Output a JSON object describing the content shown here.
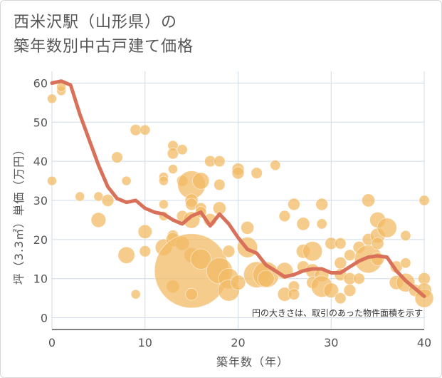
{
  "title_lines": [
    "西米沢駅（山形県）の",
    "築年数別中古戸建て価格"
  ],
  "colors": {
    "bubble": "#f2bb66",
    "line": "#d9705a",
    "grid": "#cfdbe6",
    "axis": "#555555"
  },
  "chart_data": {
    "type": "scatter",
    "title": "西米沢駅（山形県）の 築年数別中古戸建て価格",
    "xlabel": "築年数（年）",
    "ylabel": "坪（3.3㎡）単価（万円）",
    "xlim": [
      0,
      40
    ],
    "ylim": [
      -3,
      63
    ],
    "xticks": [
      0,
      10,
      20,
      30,
      40
    ],
    "yticks": [
      0,
      10,
      20,
      30,
      40,
      50,
      60
    ],
    "grid": true,
    "annotation": "円の大きさは、取引のあった物件面積を示す",
    "bubbles": [
      {
        "x": 0,
        "y": 56,
        "s": 1
      },
      {
        "x": 0,
        "y": 35,
        "s": 1
      },
      {
        "x": 1,
        "y": 58,
        "s": 1
      },
      {
        "x": 1,
        "y": 59,
        "s": 1
      },
      {
        "x": 3,
        "y": 31,
        "s": 1
      },
      {
        "x": 5,
        "y": 31,
        "s": 1
      },
      {
        "x": 5,
        "y": 25,
        "s": 1.6
      },
      {
        "x": 6,
        "y": 30,
        "s": 1.3
      },
      {
        "x": 7,
        "y": 41,
        "s": 1.2
      },
      {
        "x": 8,
        "y": 35,
        "s": 1
      },
      {
        "x": 8,
        "y": 16,
        "s": 1.8
      },
      {
        "x": 9,
        "y": 48,
        "s": 1.2
      },
      {
        "x": 9,
        "y": 6,
        "s": 1
      },
      {
        "x": 10,
        "y": 48,
        "s": 1.1
      },
      {
        "x": 10,
        "y": 22,
        "s": 1.5
      },
      {
        "x": 10,
        "y": 17,
        "s": 1.2
      },
      {
        "x": 12,
        "y": 36,
        "s": 1
      },
      {
        "x": 12,
        "y": 35,
        "s": 1
      },
      {
        "x": 12,
        "y": 29,
        "s": 1
      },
      {
        "x": 12,
        "y": 26,
        "s": 1
      },
      {
        "x": 12,
        "y": 18,
        "s": 1.8
      },
      {
        "x": 13,
        "y": 44,
        "s": 1.1
      },
      {
        "x": 13,
        "y": 42,
        "s": 1.2
      },
      {
        "x": 13,
        "y": 38,
        "s": 1
      },
      {
        "x": 13,
        "y": 21,
        "s": 1.2
      },
      {
        "x": 13,
        "y": 20,
        "s": 1.5
      },
      {
        "x": 13,
        "y": 8,
        "s": 1.4
      },
      {
        "x": 14,
        "y": 43,
        "s": 1.1
      },
      {
        "x": 14,
        "y": 35,
        "s": 1.2
      },
      {
        "x": 14,
        "y": 26,
        "s": 1.2
      },
      {
        "x": 14,
        "y": 19,
        "s": 1.5
      },
      {
        "x": 15,
        "y": 34,
        "s": 3
      },
      {
        "x": 15,
        "y": 30,
        "s": 1.4
      },
      {
        "x": 15,
        "y": 29,
        "s": 1.3
      },
      {
        "x": 15,
        "y": 25,
        "s": 1.8
      },
      {
        "x": 15,
        "y": 16,
        "s": 1.6
      },
      {
        "x": 15,
        "y": 12,
        "s": 8
      },
      {
        "x": 15,
        "y": 6,
        "s": 1.3
      },
      {
        "x": 16,
        "y": 35,
        "s": 1.8
      },
      {
        "x": 16,
        "y": 28,
        "s": 1.2
      },
      {
        "x": 16,
        "y": 27,
        "s": 1.2
      },
      {
        "x": 16,
        "y": 15,
        "s": 2.2
      },
      {
        "x": 17,
        "y": 40,
        "s": 1.2
      },
      {
        "x": 17,
        "y": 25,
        "s": 1.4
      },
      {
        "x": 18,
        "y": 40,
        "s": 1.2
      },
      {
        "x": 18,
        "y": 34,
        "s": 1.2
      },
      {
        "x": 18,
        "y": 28,
        "s": 1.4
      },
      {
        "x": 18,
        "y": 12,
        "s": 2.8
      },
      {
        "x": 19,
        "y": 17,
        "s": 1.3
      },
      {
        "x": 19,
        "y": 10,
        "s": 2.2
      },
      {
        "x": 19,
        "y": 7,
        "s": 2.3
      },
      {
        "x": 20,
        "y": 38,
        "s": 1.3
      },
      {
        "x": 20,
        "y": 37,
        "s": 1.3
      },
      {
        "x": 20,
        "y": 9,
        "s": 1.6
      },
      {
        "x": 21,
        "y": 23,
        "s": 1.4
      },
      {
        "x": 21,
        "y": 18,
        "s": 2.2
      },
      {
        "x": 22,
        "y": 37,
        "s": 1.2
      },
      {
        "x": 22,
        "y": 11,
        "s": 2.8
      },
      {
        "x": 23,
        "y": 11,
        "s": 2.8
      },
      {
        "x": 23,
        "y": 10,
        "s": 1.8
      },
      {
        "x": 24,
        "y": 39,
        "s": 1.1
      },
      {
        "x": 25,
        "y": 26,
        "s": 1.2
      },
      {
        "x": 25,
        "y": 12,
        "s": 1.8
      },
      {
        "x": 25,
        "y": 6,
        "s": 1.5
      },
      {
        "x": 26,
        "y": 29,
        "s": 1.3
      },
      {
        "x": 26,
        "y": 8,
        "s": 1.2
      },
      {
        "x": 26,
        "y": 6,
        "s": 1.2
      },
      {
        "x": 27,
        "y": 24,
        "s": 1.4
      },
      {
        "x": 27,
        "y": 17,
        "s": 1.5
      },
      {
        "x": 27,
        "y": 13,
        "s": 1.3
      },
      {
        "x": 28,
        "y": 17,
        "s": 2.1
      },
      {
        "x": 28,
        "y": 12,
        "s": 1.5
      },
      {
        "x": 28,
        "y": 9,
        "s": 1.3
      },
      {
        "x": 29,
        "y": 29,
        "s": 1.3
      },
      {
        "x": 29,
        "y": 24,
        "s": 1.1
      },
      {
        "x": 29,
        "y": 11,
        "s": 1.5
      },
      {
        "x": 29,
        "y": 8,
        "s": 2.3
      },
      {
        "x": 30,
        "y": 19,
        "s": 1.3
      },
      {
        "x": 30,
        "y": 7,
        "s": 1.6
      },
      {
        "x": 31,
        "y": 19,
        "s": 1.2
      },
      {
        "x": 31,
        "y": 14,
        "s": 1.3
      },
      {
        "x": 31,
        "y": 11,
        "s": 1.3
      },
      {
        "x": 31,
        "y": 5,
        "s": 1.2
      },
      {
        "x": 32,
        "y": 16,
        "s": 1.2
      },
      {
        "x": 32,
        "y": 10,
        "s": 1.3
      },
      {
        "x": 32,
        "y": 7,
        "s": 1.3
      },
      {
        "x": 33,
        "y": 18,
        "s": 1.3
      },
      {
        "x": 33,
        "y": 10,
        "s": 1.2
      },
      {
        "x": 34,
        "y": 30,
        "s": 1.4
      },
      {
        "x": 34,
        "y": 20,
        "s": 1.3
      },
      {
        "x": 34,
        "y": 15,
        "s": 3
      },
      {
        "x": 35,
        "y": 25,
        "s": 1.7
      },
      {
        "x": 35,
        "y": 21,
        "s": 1.6
      },
      {
        "x": 35,
        "y": 19,
        "s": 1.3
      },
      {
        "x": 35,
        "y": 15,
        "s": 1.4
      },
      {
        "x": 36,
        "y": 23,
        "s": 2.1
      },
      {
        "x": 37,
        "y": 13,
        "s": 1.3
      },
      {
        "x": 37,
        "y": 9,
        "s": 1.5
      },
      {
        "x": 38,
        "y": 21,
        "s": 1.1
      },
      {
        "x": 38,
        "y": 14,
        "s": 1.1
      },
      {
        "x": 38,
        "y": 9,
        "s": 2
      },
      {
        "x": 39,
        "y": 7,
        "s": 1.3
      },
      {
        "x": 40,
        "y": 30,
        "s": 1.1
      },
      {
        "x": 40,
        "y": 10,
        "s": 1.3
      },
      {
        "x": 40,
        "y": 7,
        "s": 1.6
      },
      {
        "x": 40,
        "y": 5,
        "s": 2
      }
    ],
    "trend": {
      "x": [
        0,
        1,
        2,
        3,
        4,
        5,
        6,
        7,
        8,
        9,
        10,
        11,
        12,
        13,
        14,
        15,
        16,
        17,
        18,
        19,
        20,
        21,
        22,
        23,
        24,
        25,
        26,
        27,
        28,
        29,
        30,
        31,
        32,
        33,
        34,
        35,
        36,
        37,
        38,
        39,
        40
      ],
      "y": [
        60,
        60.5,
        59.5,
        52,
        45.5,
        39,
        33.5,
        30.5,
        29.5,
        30,
        28,
        27,
        26.5,
        25,
        24,
        26,
        27,
        23.5,
        26.5,
        24,
        20.5,
        17.5,
        16.5,
        13.5,
        12,
        10.5,
        11,
        12,
        12.5,
        12.5,
        11.5,
        11.5,
        13,
        14.5,
        15.5,
        15.8,
        15.5,
        12,
        9.5,
        7.5,
        5.5
      ]
    }
  }
}
